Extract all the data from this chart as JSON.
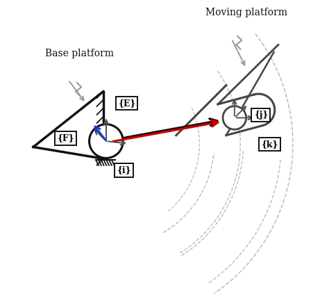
{
  "fig_width": 4.74,
  "fig_height": 4.23,
  "dpi": 100,
  "bg_color": "#ffffff",
  "labels": {
    "E": "{E}",
    "F": "{F}",
    "i": "{i}",
    "j": "{j}",
    "k": "{k}",
    "base": "Base platform",
    "moving": "Moving platform"
  },
  "colors": {
    "black": "#111111",
    "gray": "#555555",
    "dark_gray": "#444444",
    "light_gray": "#999999",
    "dashed_gray": "#bbbbbb",
    "red": "#cc0000",
    "blue": "#1144cc"
  },
  "bx": 0.3,
  "by": 0.52,
  "mx": 0.74,
  "my": 0.6
}
